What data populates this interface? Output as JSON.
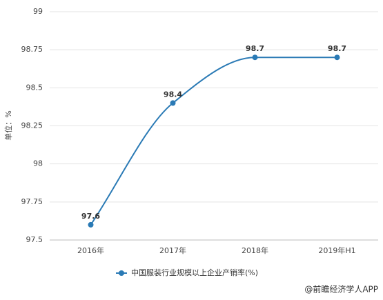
{
  "chart_data": {
    "type": "line",
    "y_label": "单位：%",
    "categories": [
      "2016年",
      "2017年",
      "2018年",
      "2019年H1"
    ],
    "series": [
      {
        "name": "中国服装行业规模以上企业产销率(%)",
        "color": "#2a7ab5",
        "values": [
          97.6,
          98.4,
          98.7,
          98.7
        ]
      }
    ],
    "ylim": [
      97.5,
      99
    ],
    "yticks": [
      97.5,
      97.75,
      98,
      98.25,
      98.5,
      98.75,
      99
    ],
    "grid": true,
    "smooth": true,
    "legend": "bottom",
    "source": "@前瞻经济学人APP"
  }
}
